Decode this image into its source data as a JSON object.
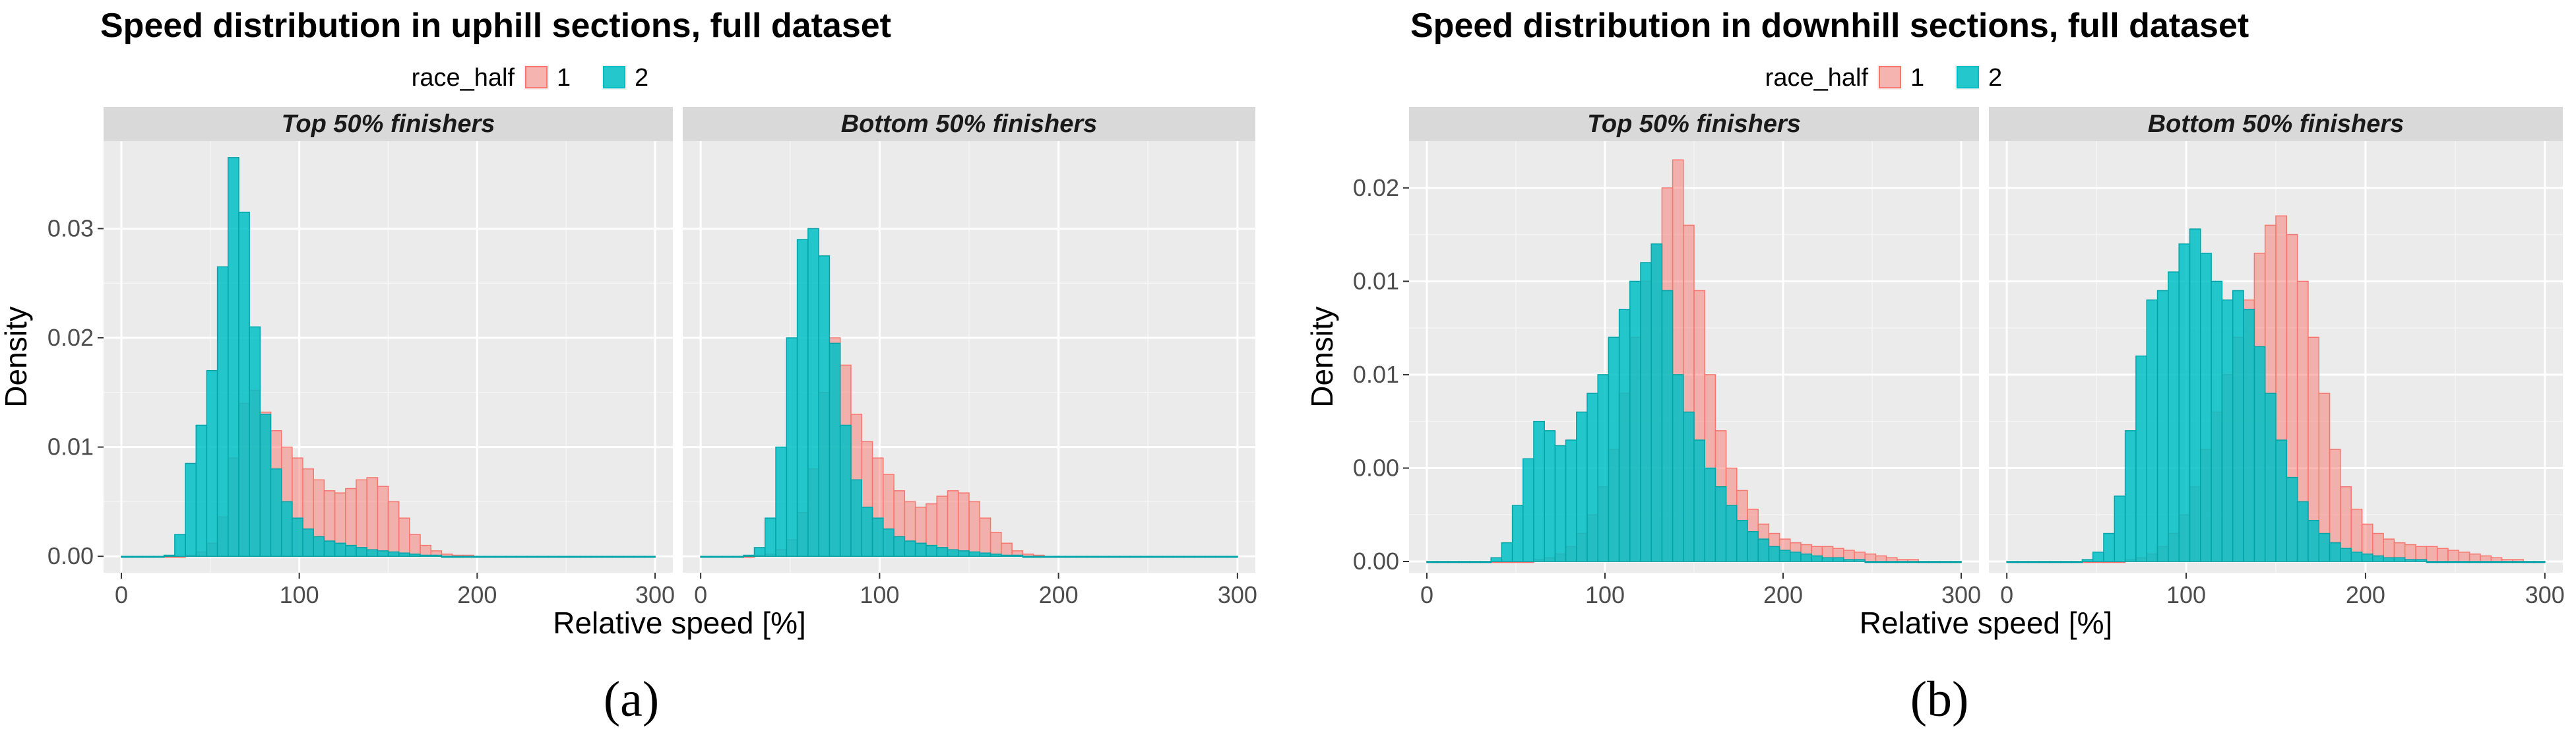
{
  "captions": [
    "(a)",
    "(b)"
  ],
  "colors": {
    "series_1_fill": "#F8766D",
    "series_2_fill": "#00BFC4",
    "panel_bg": "#EBEBEB",
    "strip_bg": "#D9D9D9",
    "grid_major": "#FFFFFF"
  },
  "chart_data": [
    {
      "type": "histogram",
      "title": "Speed distribution in uphill sections, full dataset",
      "xlabel": "Relative speed [%]",
      "ylabel": "Density",
      "legend": {
        "title": "race_half",
        "position": "top",
        "entries": [
          "1",
          "2"
        ]
      },
      "facets": [
        "Top 50% finishers",
        "Bottom 50% finishers"
      ],
      "x_ticks": [
        0,
        100,
        200,
        300
      ],
      "y_ticks": [
        0,
        0.01,
        0.02,
        0.03
      ],
      "y_tick_labels": [
        "0.00",
        "0.01",
        "0.02",
        "0.03"
      ],
      "xlim": [
        -10,
        310
      ],
      "ylim": [
        -0.0015,
        0.038
      ],
      "grid": true,
      "bin_width": 6,
      "bin_start": 0,
      "panels": [
        {
          "facet": "Top 50% finishers",
          "series": [
            {
              "name": "1",
              "values": [
                0,
                0,
                0,
                0,
                0,
                0,
                0.0001,
                0.0004,
                0.0012,
                0.0036,
                0.009,
                0.014,
                0.0152,
                0.0132,
                0.0115,
                0.01,
                0.009,
                0.008,
                0.007,
                0.006,
                0.0058,
                0.0062,
                0.007,
                0.0072,
                0.0064,
                0.005,
                0.0035,
                0.002,
                0.001,
                0.0005,
                0.0002,
                0.0001,
                0.0001,
                0,
                0,
                0,
                0,
                0,
                0,
                0,
                0,
                0,
                0,
                0,
                0,
                0,
                0,
                0,
                0,
                0
              ]
            },
            {
              "name": "2",
              "values": [
                0,
                0,
                0,
                0,
                0.0001,
                0.002,
                0.0085,
                0.012,
                0.017,
                0.0265,
                0.0365,
                0.0315,
                0.021,
                0.013,
                0.008,
                0.005,
                0.0035,
                0.0025,
                0.0018,
                0.0014,
                0.0012,
                0.001,
                0.0008,
                0.0006,
                0.0005,
                0.0004,
                0.0003,
                0.0002,
                0.0001,
                0.0001,
                0,
                0,
                0,
                0,
                0,
                0,
                0,
                0,
                0,
                0,
                0,
                0,
                0,
                0,
                0,
                0,
                0,
                0,
                0,
                0
              ]
            }
          ]
        },
        {
          "facet": "Bottom 50% finishers",
          "series": [
            {
              "name": "1",
              "values": [
                0,
                0,
                0,
                0,
                0,
                0.0001,
                0.0002,
                0.0006,
                0.0015,
                0.004,
                0.008,
                0.015,
                0.02,
                0.0175,
                0.013,
                0.0105,
                0.009,
                0.0075,
                0.006,
                0.005,
                0.0045,
                0.0048,
                0.0055,
                0.006,
                0.0058,
                0.005,
                0.0035,
                0.0022,
                0.0012,
                0.0005,
                0.0002,
                0.0001,
                0,
                0,
                0,
                0,
                0,
                0,
                0,
                0,
                0,
                0,
                0,
                0,
                0,
                0,
                0,
                0,
                0,
                0
              ]
            },
            {
              "name": "2",
              "values": [
                0,
                0,
                0,
                0,
                0.0001,
                0.0008,
                0.0035,
                0.01,
                0.02,
                0.029,
                0.03,
                0.0275,
                0.0195,
                0.012,
                0.007,
                0.0045,
                0.0035,
                0.0025,
                0.0018,
                0.0014,
                0.0012,
                0.001,
                0.0008,
                0.0006,
                0.0005,
                0.0004,
                0.0003,
                0.0002,
                0.0001,
                0.0001,
                0,
                0,
                0,
                0,
                0,
                0,
                0,
                0,
                0,
                0,
                0,
                0,
                0,
                0,
                0,
                0,
                0,
                0,
                0,
                0
              ]
            }
          ]
        }
      ]
    },
    {
      "type": "histogram",
      "title": "Speed distribution in downhill sections, full dataset",
      "xlabel": "Relative speed [%]",
      "ylabel": "Density",
      "legend": {
        "title": "race_half",
        "position": "top",
        "entries": [
          "1",
          "2"
        ]
      },
      "facets": [
        "Top 50% finishers",
        "Bottom 50% finishers"
      ],
      "x_ticks": [
        0,
        100,
        200,
        300
      ],
      "y_ticks": [
        0,
        0.005,
        0.01,
        0.015,
        0.02
      ],
      "y_tick_labels": [
        "0.00",
        "0.00",
        "0.01",
        "0.01",
        "0.02"
      ],
      "xlim": [
        -10,
        310
      ],
      "ylim": [
        -0.0006,
        0.0225
      ],
      "grid": true,
      "bin_width": 6,
      "bin_start": 0,
      "panels": [
        {
          "facet": "Top 50% finishers",
          "series": [
            {
              "name": "1",
              "values": [
                0,
                0,
                0,
                0,
                0,
                0,
                0,
                0,
                0,
                0,
                0.0001,
                0.0002,
                0.0004,
                0.0008,
                0.0015,
                0.0025,
                0.004,
                0.006,
                0.009,
                0.012,
                0.015,
                0.017,
                0.02,
                0.0215,
                0.018,
                0.0145,
                0.01,
                0.007,
                0.005,
                0.0038,
                0.0028,
                0.002,
                0.0015,
                0.0012,
                0.001,
                0.0009,
                0.0008,
                0.0008,
                0.0007,
                0.0006,
                0.0005,
                0.0004,
                0.0003,
                0.0002,
                0.0001,
                0.0001,
                0,
                0,
                0,
                0
              ]
            },
            {
              "name": "2",
              "values": [
                0,
                0,
                0,
                0,
                0,
                0,
                0.0002,
                0.001,
                0.003,
                0.0055,
                0.0075,
                0.007,
                0.0062,
                0.0065,
                0.008,
                0.009,
                0.01,
                0.012,
                0.0135,
                0.015,
                0.016,
                0.017,
                0.0145,
                0.01,
                0.008,
                0.0065,
                0.005,
                0.004,
                0.003,
                0.0022,
                0.0016,
                0.0012,
                0.0008,
                0.0006,
                0.0005,
                0.0004,
                0.0003,
                0.0002,
                0.0002,
                0.0001,
                0.0001,
                0,
                0,
                0,
                0,
                0,
                0,
                0,
                0,
                0
              ]
            }
          ]
        },
        {
          "facet": "Bottom 50% finishers",
          "series": [
            {
              "name": "1",
              "values": [
                0,
                0,
                0,
                0,
                0,
                0,
                0,
                0,
                0,
                0,
                0,
                0.0001,
                0.0002,
                0.0004,
                0.0008,
                0.0015,
                0.0025,
                0.004,
                0.006,
                0.008,
                0.01,
                0.012,
                0.014,
                0.0165,
                0.018,
                0.0185,
                0.0175,
                0.015,
                0.012,
                0.009,
                0.006,
                0.004,
                0.0028,
                0.002,
                0.0015,
                0.0012,
                0.001,
                0.0009,
                0.0008,
                0.0008,
                0.0007,
                0.0006,
                0.0005,
                0.0004,
                0.0003,
                0.0002,
                0.0001,
                0.0001,
                0,
                0
              ]
            },
            {
              "name": "2",
              "values": [
                0,
                0,
                0,
                0,
                0,
                0,
                0,
                0.0001,
                0.0005,
                0.0015,
                0.0035,
                0.007,
                0.011,
                0.014,
                0.0145,
                0.0155,
                0.017,
                0.0178,
                0.0165,
                0.015,
                0.014,
                0.0145,
                0.0135,
                0.0115,
                0.009,
                0.0065,
                0.0045,
                0.0032,
                0.0022,
                0.0015,
                0.001,
                0.0007,
                0.0005,
                0.0004,
                0.0003,
                0.0002,
                0.0002,
                0.0001,
                0.0001,
                0,
                0,
                0,
                0,
                0,
                0,
                0,
                0,
                0,
                0,
                0
              ]
            }
          ]
        }
      ]
    }
  ]
}
